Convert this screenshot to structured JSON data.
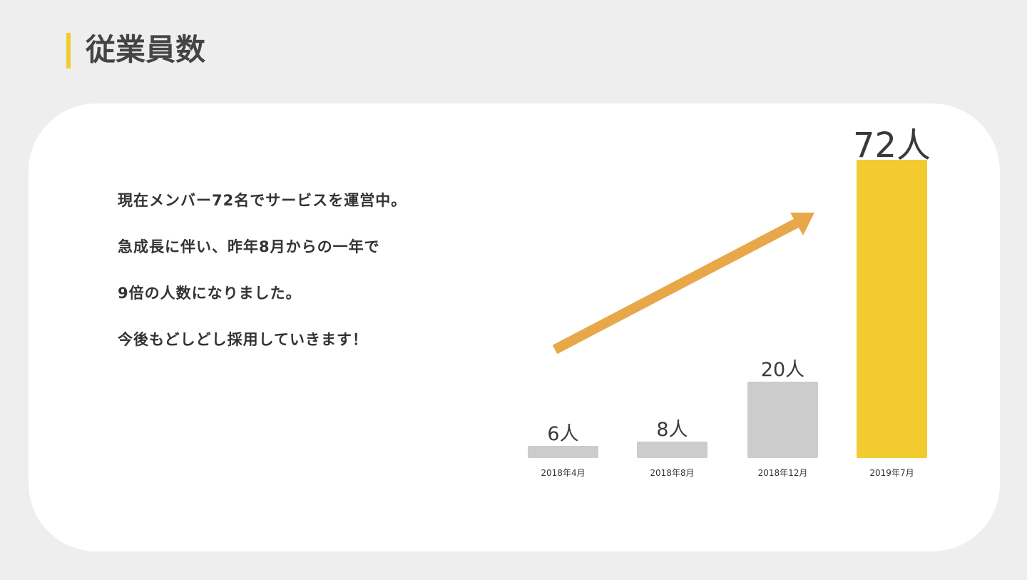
{
  "header": {
    "title": "従業員数",
    "accent_color": "#f2cb30"
  },
  "description": [
    "現在メンバー72名でサービスを運営中。",
    "急成長に伴い、昨年8月からの一年で",
    "9倍の人数になりました。",
    "今後もどしどし採用していきます！"
  ],
  "chart_data": {
    "type": "bar",
    "categories": [
      "2018年4月",
      "2018年8月",
      "2018年12月",
      "2019年7月"
    ],
    "values": [
      6,
      8,
      20,
      72
    ],
    "data_labels": [
      "6人",
      "8人",
      "20人",
      "72人"
    ],
    "unit": "人",
    "colors": [
      "#cccccc",
      "#cccccc",
      "#cccccc",
      "#f2cb30"
    ],
    "trend_arrow_color": "#e8a84a",
    "grid": false
  }
}
